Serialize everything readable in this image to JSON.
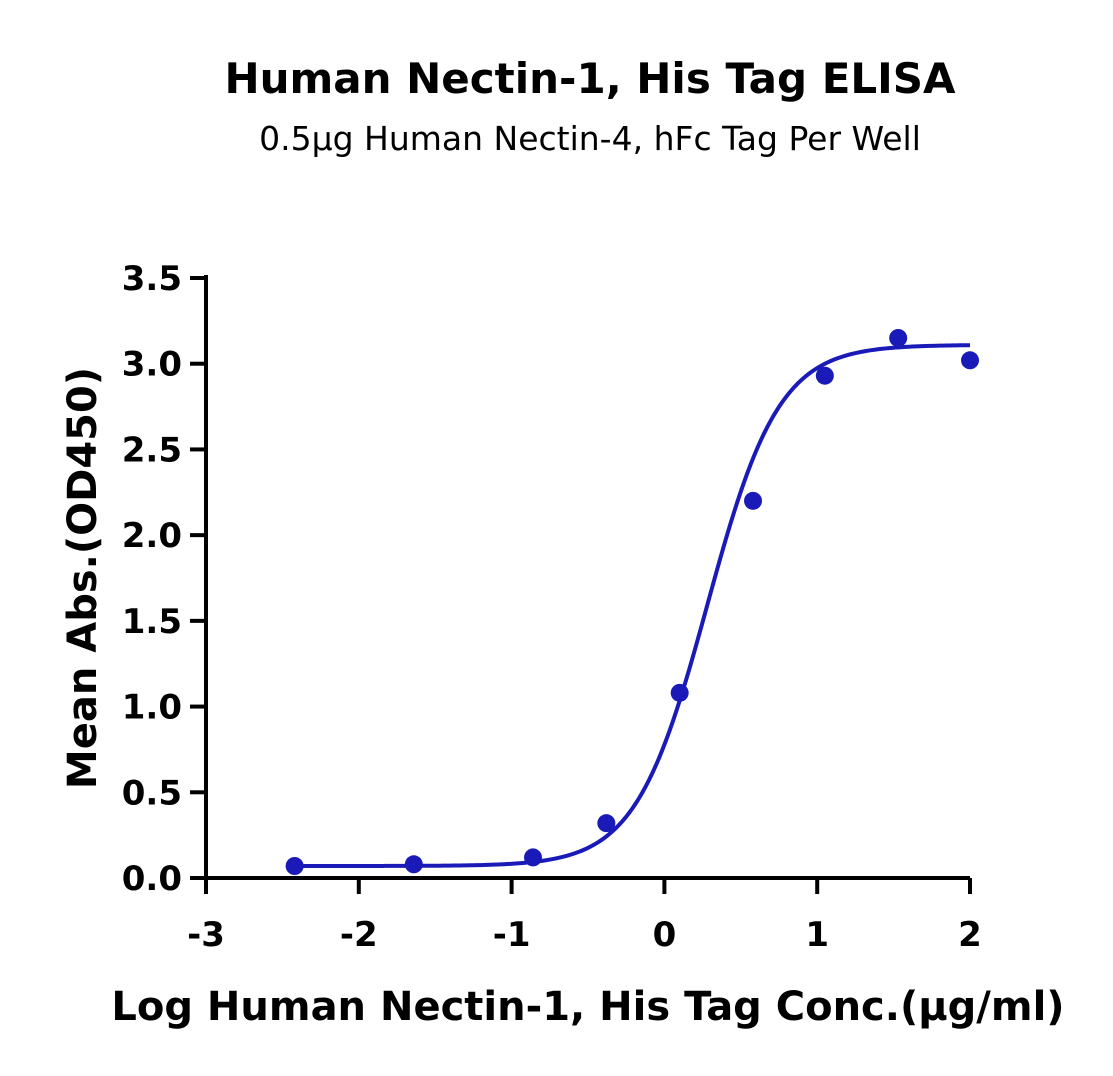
{
  "chart_data": {
    "type": "scatter",
    "title": "Human Nectin-1, His Tag ELISA",
    "subtitle": "0.5μg Human Nectin-4, hFc Tag Per Well",
    "xlabel": "Log Human Nectin-1, His Tag Conc.(μg/ml)",
    "ylabel": "Mean Abs.(OD450)",
    "xlim": [
      -3,
      2
    ],
    "ylim": [
      0,
      3.5
    ],
    "x_ticks": [
      "-3",
      "-2",
      "-1",
      "0",
      "1",
      "2"
    ],
    "y_ticks": [
      "0.0",
      "0.5",
      "1.0",
      "1.5",
      "2.0",
      "2.5",
      "3.0",
      "3.5"
    ],
    "grid": false,
    "series": [
      {
        "color": "#1a1ab8",
        "points": [
          {
            "x": -2.42,
            "y": 0.07
          },
          {
            "x": -1.64,
            "y": 0.08
          },
          {
            "x": -0.86,
            "y": 0.12
          },
          {
            "x": -0.38,
            "y": 0.32
          },
          {
            "x": 0.1,
            "y": 1.08
          },
          {
            "x": 0.58,
            "y": 2.2
          },
          {
            "x": 1.05,
            "y": 2.93
          },
          {
            "x": 1.53,
            "y": 3.15
          },
          {
            "x": 2.0,
            "y": 3.02
          }
        ],
        "fit": {
          "model": "4PL",
          "bottom": 0.07,
          "top": 3.11,
          "log_ec50": 0.28,
          "hill_slope": 1.85
        }
      }
    ]
  }
}
